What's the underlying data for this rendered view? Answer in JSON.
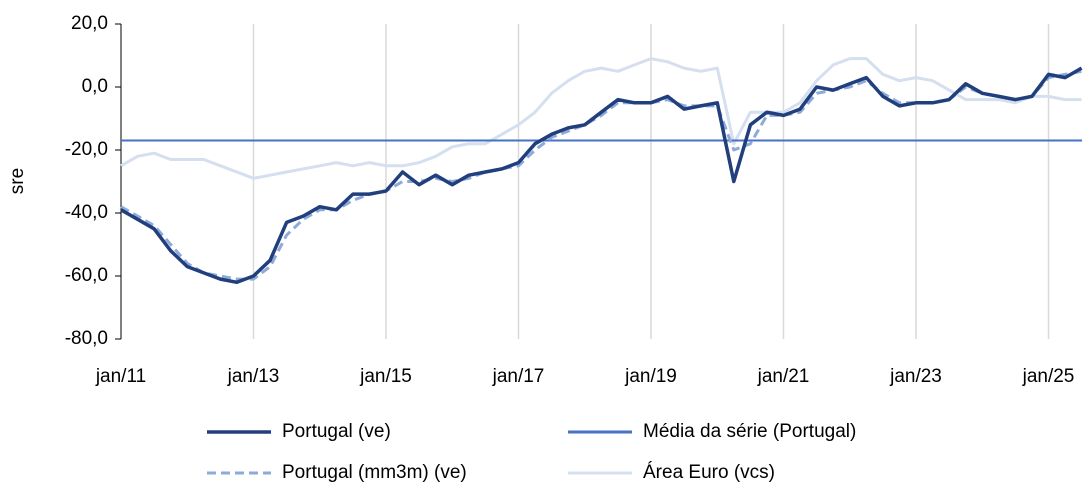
{
  "chart_data": {
    "type": "line",
    "y_label": "sre",
    "categories": [
      "jan/11",
      null,
      null,
      null,
      null,
      null,
      null,
      null,
      "jan/13",
      null,
      null,
      null,
      null,
      null,
      null,
      null,
      "jan/15",
      null,
      null,
      null,
      null,
      null,
      null,
      null,
      "jan/17",
      null,
      null,
      null,
      null,
      null,
      null,
      null,
      "jan/19",
      null,
      null,
      null,
      null,
      null,
      null,
      null,
      "jan/21",
      null,
      null,
      null,
      null,
      null,
      null,
      null,
      "jan/23",
      null,
      null,
      null,
      null,
      null,
      null,
      null,
      "jan/25",
      null,
      null
    ],
    "ylim": [
      -80,
      20
    ],
    "yticks": [
      {
        "value": -80,
        "label": "-80,0"
      },
      {
        "value": -60,
        "label": "-60,0"
      },
      {
        "value": -40,
        "label": "-40,0"
      },
      {
        "value": -20,
        "label": "-20,0"
      },
      {
        "value": 0,
        "label": "0,0"
      },
      {
        "value": 20,
        "label": "20,0"
      }
    ],
    "grid": true,
    "series": [
      {
        "name": "Portugal (ve)",
        "color": "#203f7c",
        "style": "solid",
        "values": [
          -39,
          -42,
          -45,
          -52,
          -57,
          -59,
          -61,
          -62,
          -60,
          -55,
          -43,
          -41,
          -38,
          -39,
          -34,
          -34,
          -33,
          -27,
          -31,
          -28,
          -31,
          -28,
          -27,
          -26,
          -24,
          -18,
          -15,
          -13,
          -12,
          -8,
          -4,
          -5,
          -5,
          -3,
          -7,
          -6,
          -5,
          -30,
          -12,
          -8,
          -9,
          -7,
          0,
          -1,
          1,
          3,
          -3,
          -6,
          -5,
          -5,
          -4,
          1,
          -2,
          -3,
          -4,
          -3,
          4,
          3,
          6
        ]
      },
      {
        "name": "Média da série (Portugal)",
        "color": "#4472c4",
        "style": "hline",
        "value": -17
      },
      {
        "name": "Portugal (mm3m) (ve)",
        "color": "#8eaadb",
        "style": "dashed",
        "values": [
          -38,
          -41,
          -44,
          -50,
          -56,
          -59,
          -60,
          -61,
          -61,
          -57,
          -47,
          -42,
          -39,
          -39,
          -36,
          -34,
          -33,
          -30,
          -30,
          -29,
          -30,
          -29,
          -27,
          -26,
          -25,
          -20,
          -16,
          -14,
          -12,
          -9,
          -5,
          -5,
          -5,
          -4,
          -6,
          -6,
          -6,
          -20,
          -18,
          -9,
          -9,
          -8,
          -2,
          -1,
          0,
          2,
          -2,
          -5,
          -5,
          -5,
          -4,
          0,
          -2,
          -3,
          -4,
          -3,
          3,
          4,
          5
        ]
      },
      {
        "name": "Área Euro (vcs)",
        "color": "#d5dff0",
        "style": "solid",
        "values": [
          -25,
          -22,
          -21,
          -23,
          -23,
          -23,
          -25,
          -27,
          -29,
          -28,
          -27,
          -26,
          -25,
          -24,
          -25,
          -24,
          -25,
          -25,
          -24,
          -22,
          -19,
          -18,
          -18,
          -15,
          -12,
          -8,
          -2,
          2,
          5,
          6,
          5,
          7,
          9,
          8,
          6,
          5,
          6,
          -18,
          -8,
          -8,
          -8,
          -5,
          2,
          7,
          9,
          9,
          4,
          2,
          3,
          2,
          -1,
          -4,
          -4,
          -4,
          -5,
          -3,
          -3,
          -4,
          -4
        ]
      }
    ]
  }
}
